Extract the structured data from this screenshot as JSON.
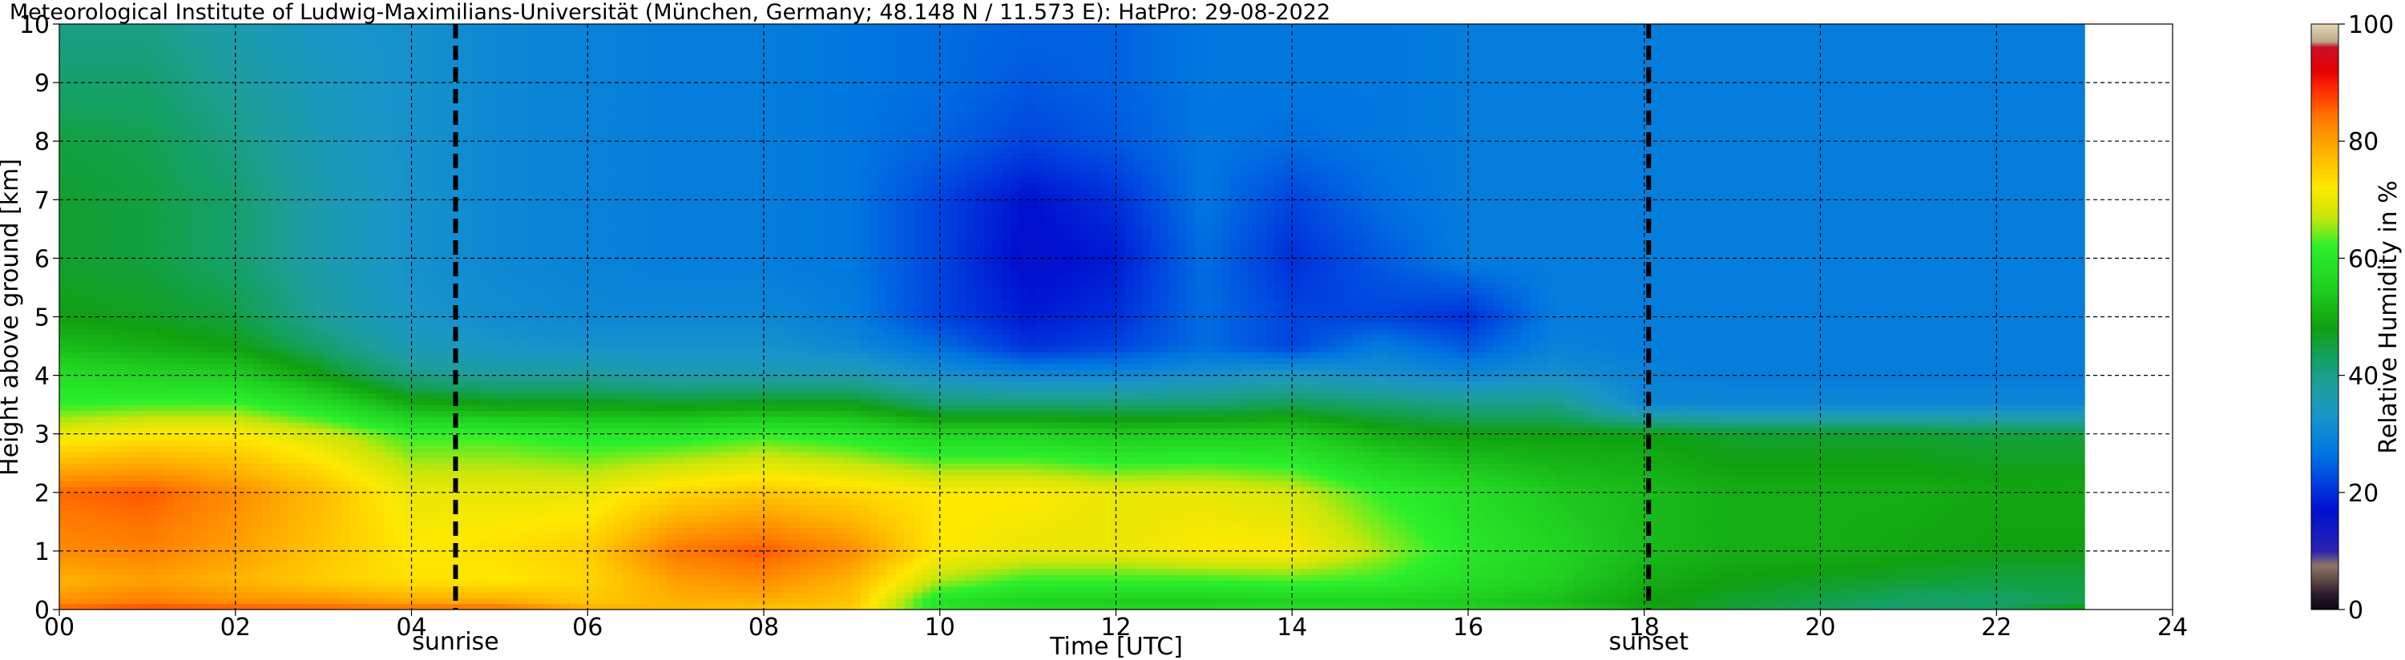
{
  "chart_data": {
    "type": "heatmap",
    "title": "Meteorological Institute of Ludwig-Maximilians-Universität (München, Germany; 48.148 N / 11.573 E):    HatPro: 29-08-2022",
    "xlabel": "Time [UTC]",
    "ylabel": "Height above ground [km]",
    "colorbar_label": "Relative Humidity in %",
    "xlim": [
      0,
      24
    ],
    "ylim": [
      0,
      10
    ],
    "clim": [
      0,
      100
    ],
    "data_end_hour": 23,
    "x_ticks": [
      0,
      2,
      4,
      6,
      8,
      10,
      12,
      14,
      16,
      18,
      20,
      22,
      24
    ],
    "x_tick_labels": [
      "00",
      "02",
      "04",
      "06",
      "08",
      "10",
      "12",
      "14",
      "16",
      "18",
      "20",
      "22",
      "24"
    ],
    "y_ticks": [
      0,
      1,
      2,
      3,
      4,
      5,
      6,
      7,
      8,
      9,
      10
    ],
    "y_tick_labels": [
      "0",
      "1",
      "2",
      "3",
      "4",
      "5",
      "6",
      "7",
      "8",
      "9",
      "10"
    ],
    "colorbar_ticks": [
      0,
      20,
      40,
      60,
      80,
      100
    ],
    "colorbar_tick_labels": [
      "0",
      "20",
      "40",
      "60",
      "80",
      "100"
    ],
    "grid": true,
    "markers": [
      {
        "label": "sunrise",
        "hour": 4.5
      },
      {
        "label": "sunset",
        "hour": 18.05
      }
    ],
    "humidity_profile": {
      "heights_km": [
        0,
        0.1,
        0.5,
        1,
        2,
        3,
        3.5,
        4,
        4.5,
        5,
        6,
        7,
        8,
        9,
        10
      ],
      "times_utc": [
        0,
        1,
        2,
        3,
        4,
        5,
        6,
        7,
        8,
        9,
        10,
        11,
        12,
        13,
        14,
        15,
        16,
        17,
        18,
        19,
        20,
        21,
        22,
        23
      ],
      "rh_percent": [
        [
          87,
          82,
          78,
          82,
          85,
          70,
          62,
          58,
          52,
          48,
          46,
          46,
          45,
          42,
          40
        ],
        [
          88,
          84,
          80,
          83,
          86,
          72,
          63,
          56,
          50,
          47,
          45,
          45,
          44,
          42,
          40
        ],
        [
          88,
          82,
          78,
          80,
          82,
          72,
          63,
          55,
          48,
          45,
          42,
          42,
          40,
          38,
          36
        ],
        [
          87,
          82,
          75,
          76,
          77,
          68,
          58,
          48,
          42,
          38,
          36,
          36,
          35,
          34,
          33
        ],
        [
          87,
          80,
          73,
          72,
          70,
          62,
          50,
          40,
          35,
          33,
          32,
          32,
          32,
          32,
          32
        ],
        [
          87,
          80,
          72,
          73,
          70,
          62,
          48,
          38,
          33,
          31,
          30,
          30,
          30,
          30,
          30
        ],
        [
          80,
          76,
          74,
          75,
          70,
          60,
          48,
          38,
          32,
          30,
          29,
          29,
          29,
          29,
          29
        ],
        [
          78,
          78,
          80,
          84,
          74,
          60,
          47,
          36,
          32,
          30,
          28,
          28,
          28,
          28,
          28
        ],
        [
          76,
          78,
          82,
          86,
          76,
          62,
          48,
          36,
          32,
          30,
          28,
          28,
          28,
          28,
          28
        ],
        [
          75,
          76,
          78,
          82,
          74,
          60,
          48,
          36,
          30,
          28,
          27,
          27,
          27,
          27,
          27
        ],
        [
          60,
          58,
          66,
          72,
          72,
          56,
          42,
          32,
          26,
          22,
          22,
          22,
          25,
          26,
          26
        ],
        [
          58,
          55,
          62,
          70,
          72,
          56,
          42,
          30,
          20,
          18,
          16,
          17,
          22,
          24,
          25
        ],
        [
          58,
          54,
          62,
          70,
          70,
          54,
          42,
          30,
          22,
          20,
          18,
          20,
          24,
          25,
          25
        ],
        [
          58,
          54,
          62,
          72,
          70,
          55,
          42,
          32,
          26,
          26,
          26,
          27,
          27,
          27,
          27
        ],
        [
          60,
          55,
          63,
          72,
          68,
          55,
          44,
          34,
          22,
          22,
          20,
          22,
          26,
          27,
          27
        ],
        [
          58,
          55,
          62,
          66,
          62,
          50,
          42,
          32,
          28,
          22,
          24,
          26,
          27,
          27,
          27
        ],
        [
          56,
          54,
          58,
          60,
          58,
          48,
          40,
          30,
          24,
          20,
          28,
          28,
          28,
          28,
          28
        ],
        [
          55,
          52,
          55,
          56,
          54,
          48,
          40,
          32,
          29,
          28,
          28,
          28,
          28,
          28,
          28
        ],
        [
          50,
          48,
          50,
          52,
          52,
          48,
          30,
          29,
          28,
          28,
          28,
          28,
          28,
          28,
          28
        ],
        [
          46,
          46,
          48,
          50,
          50,
          46,
          30,
          28,
          28,
          28,
          28,
          28,
          28,
          28,
          28
        ],
        [
          44,
          44,
          47,
          50,
          50,
          46,
          30,
          28,
          28,
          28,
          28,
          28,
          28,
          28,
          28
        ],
        [
          43,
          42,
          46,
          49,
          50,
          46,
          30,
          28,
          28,
          28,
          28,
          28,
          28,
          28,
          28
        ],
        [
          44,
          42,
          45,
          48,
          49,
          45,
          30,
          28,
          28,
          28,
          28,
          28,
          28,
          28,
          28
        ],
        [
          52,
          44,
          45,
          48,
          49,
          45,
          30,
          28,
          28,
          28,
          28,
          28,
          28,
          28,
          28
        ]
      ]
    },
    "colorscale": [
      {
        "value": 0,
        "color": "#0b0616"
      },
      {
        "value": 2.5,
        "color": "#2a1a2a"
      },
      {
        "value": 5,
        "color": "#5e4a46"
      },
      {
        "value": 7.5,
        "color": "#8b7565"
      },
      {
        "value": 10,
        "color": "#2a23b0"
      },
      {
        "value": 17,
        "color": "#0010d0"
      },
      {
        "value": 22,
        "color": "#0044e0"
      },
      {
        "value": 27,
        "color": "#0078e0"
      },
      {
        "value": 33,
        "color": "#1a96c8"
      },
      {
        "value": 38,
        "color": "#1e9e9e"
      },
      {
        "value": 43,
        "color": "#14a060"
      },
      {
        "value": 48,
        "color": "#10a010"
      },
      {
        "value": 55,
        "color": "#20d020"
      },
      {
        "value": 62,
        "color": "#2cf02c"
      },
      {
        "value": 67,
        "color": "#c8e60a"
      },
      {
        "value": 72,
        "color": "#ffe800"
      },
      {
        "value": 78,
        "color": "#ffb400"
      },
      {
        "value": 84,
        "color": "#ff7800"
      },
      {
        "value": 89,
        "color": "#ff2800"
      },
      {
        "value": 92,
        "color": "#e60000"
      },
      {
        "value": 96,
        "color": "#c8102a"
      },
      {
        "value": 97,
        "color": "#b8a888"
      },
      {
        "value": 100,
        "color": "#e8d8b8"
      }
    ]
  }
}
